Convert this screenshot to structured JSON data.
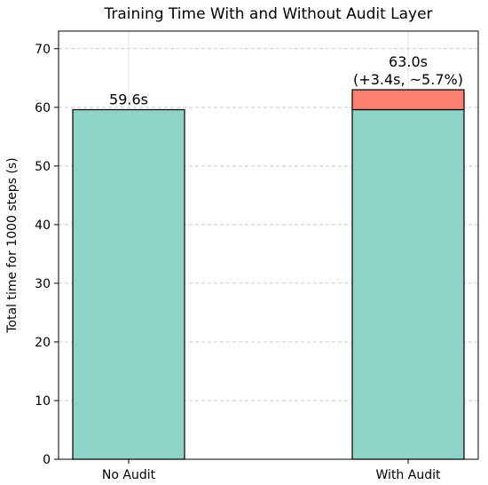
{
  "chart_data": {
    "type": "bar",
    "title": "Training Time With and Without Audit Layer",
    "ylabel": "Total time for 1000 steps (s)",
    "xlabel": "",
    "ylim": [
      0,
      73
    ],
    "yticks": [
      0,
      10,
      20,
      30,
      40,
      50,
      60,
      70
    ],
    "grid": true,
    "categories": [
      "No Audit",
      "With Audit"
    ],
    "series": [
      {
        "values": [
          59.6,
          59.6
        ],
        "color": "#8dd3c7"
      },
      {
        "values": [
          0,
          3.4
        ],
        "color": "#fb8072"
      }
    ],
    "data_labels": [
      [
        "59.6s"
      ],
      [
        "63.0s",
        "(+3.4s, ~5.7%)"
      ]
    ]
  }
}
